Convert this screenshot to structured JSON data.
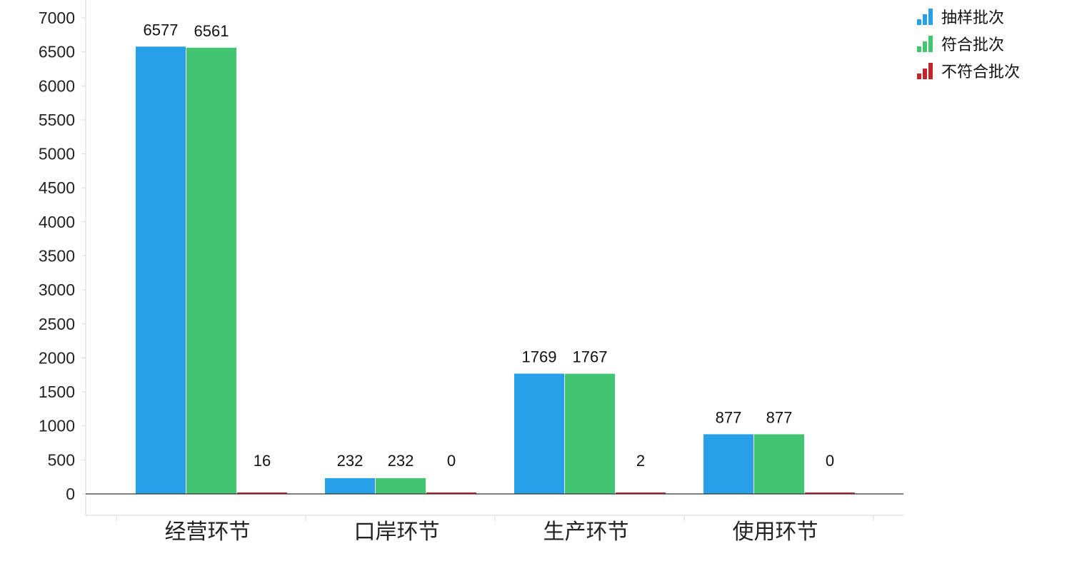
{
  "chart_data": {
    "type": "bar",
    "categories": [
      "经营环节",
      "口岸环节",
      "生产环节",
      "使用环节"
    ],
    "series": [
      {
        "name": "抽样批次",
        "values": [
          6577,
          232,
          1769,
          877
        ],
        "color": "#27a0e9"
      },
      {
        "name": "符合批次",
        "values": [
          6561,
          232,
          1767,
          877
        ],
        "color": "#43c472"
      },
      {
        "name": "不符合批次",
        "values": [
          16,
          0,
          2,
          0
        ],
        "color": "#c0272d"
      }
    ],
    "data_labels": [
      [
        "6577",
        "6561",
        "16"
      ],
      [
        "232",
        "232",
        "0"
      ],
      [
        "1769",
        "1767",
        "2"
      ],
      [
        "877",
        "877",
        "0"
      ]
    ],
    "ylim": [
      0,
      7000
    ],
    "yticks": [
      "0",
      "500",
      "1000",
      "1500",
      "2000",
      "2500",
      "3000",
      "3500",
      "4000",
      "4500",
      "5000",
      "5500",
      "6000",
      "6500",
      "7000"
    ],
    "grid": false,
    "legend_position": "top-right",
    "title": "",
    "xlabel": "",
    "ylabel": ""
  }
}
